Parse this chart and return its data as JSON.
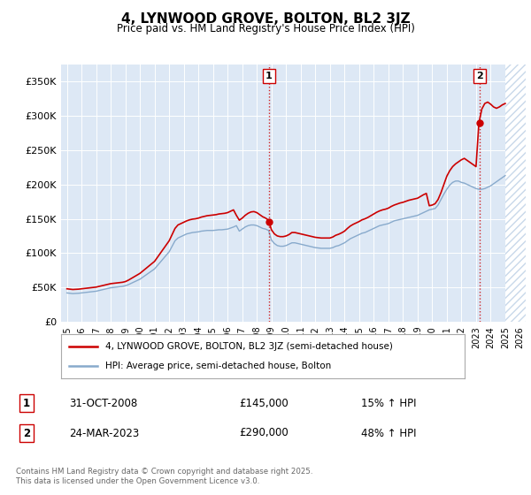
{
  "title": "4, LYNWOOD GROVE, BOLTON, BL2 3JZ",
  "subtitle": "Price paid vs. HM Land Registry's House Price Index (HPI)",
  "plot_bg_color": "#dde8f5",
  "hatch_color": "#c8d8ea",
  "ylim": [
    0,
    375000
  ],
  "yticks": [
    0,
    50000,
    100000,
    150000,
    200000,
    250000,
    300000,
    350000
  ],
  "ytick_labels": [
    "£0",
    "£50K",
    "£100K",
    "£150K",
    "£200K",
    "£250K",
    "£300K",
    "£350K"
  ],
  "xlim_start": 1994.6,
  "xlim_end": 2026.4,
  "xticks": [
    1995,
    1996,
    1997,
    1998,
    1999,
    2000,
    2001,
    2002,
    2003,
    2004,
    2005,
    2006,
    2007,
    2008,
    2009,
    2010,
    2011,
    2012,
    2013,
    2014,
    2015,
    2016,
    2017,
    2018,
    2019,
    2020,
    2021,
    2022,
    2023,
    2024,
    2025,
    2026
  ],
  "sale1_x": 2008.83,
  "sale1_y": 145000,
  "sale1_label": "1",
  "sale1_date": "31-OCT-2008",
  "sale1_price": "£145,000",
  "sale1_hpi": "15% ↑ HPI",
  "sale2_x": 2023.23,
  "sale2_y": 290000,
  "sale2_label": "2",
  "sale2_date": "24-MAR-2023",
  "sale2_price": "£290,000",
  "sale2_hpi": "48% ↑ HPI",
  "red_line_color": "#cc0000",
  "blue_line_color": "#88aacc",
  "legend_label_red": "4, LYNWOOD GROVE, BOLTON, BL2 3JZ (semi-detached house)",
  "legend_label_blue": "HPI: Average price, semi-detached house, Bolton",
  "footer_text": "Contains HM Land Registry data © Crown copyright and database right 2025.\nThis data is licensed under the Open Government Licence v3.0.",
  "hpi_blue_data": [
    [
      1995.0,
      42000
    ],
    [
      1995.2,
      41500
    ],
    [
      1995.4,
      41000
    ],
    [
      1995.6,
      41200
    ],
    [
      1995.8,
      41500
    ],
    [
      1996.0,
      42000
    ],
    [
      1996.2,
      42500
    ],
    [
      1996.4,
      43000
    ],
    [
      1996.6,
      43500
    ],
    [
      1996.8,
      44000
    ],
    [
      1997.0,
      44500
    ],
    [
      1997.2,
      45500
    ],
    [
      1997.4,
      46500
    ],
    [
      1997.6,
      47500
    ],
    [
      1997.8,
      48500
    ],
    [
      1998.0,
      49500
    ],
    [
      1998.2,
      50000
    ],
    [
      1998.4,
      50500
    ],
    [
      1998.6,
      51000
    ],
    [
      1998.8,
      51500
    ],
    [
      1999.0,
      52500
    ],
    [
      1999.2,
      54000
    ],
    [
      1999.4,
      56000
    ],
    [
      1999.6,
      58000
    ],
    [
      1999.8,
      60000
    ],
    [
      2000.0,
      62000
    ],
    [
      2000.2,
      65000
    ],
    [
      2000.4,
      68000
    ],
    [
      2000.6,
      71000
    ],
    [
      2000.8,
      74000
    ],
    [
      2001.0,
      77000
    ],
    [
      2001.2,
      82000
    ],
    [
      2001.4,
      87000
    ],
    [
      2001.6,
      92000
    ],
    [
      2001.8,
      97000
    ],
    [
      2002.0,
      102000
    ],
    [
      2002.2,
      110000
    ],
    [
      2002.4,
      118000
    ],
    [
      2002.6,
      122000
    ],
    [
      2002.8,
      124000
    ],
    [
      2003.0,
      126000
    ],
    [
      2003.2,
      128000
    ],
    [
      2003.4,
      129000
    ],
    [
      2003.6,
      130000
    ],
    [
      2003.8,
      130500
    ],
    [
      2004.0,
      131000
    ],
    [
      2004.2,
      132000
    ],
    [
      2004.4,
      132500
    ],
    [
      2004.6,
      133000
    ],
    [
      2004.8,
      133000
    ],
    [
      2005.0,
      133000
    ],
    [
      2005.2,
      133500
    ],
    [
      2005.4,
      134000
    ],
    [
      2005.6,
      134000
    ],
    [
      2005.8,
      134500
    ],
    [
      2006.0,
      135000
    ],
    [
      2006.2,
      136500
    ],
    [
      2006.4,
      138000
    ],
    [
      2006.6,
      140000
    ],
    [
      2006.8,
      132000
    ],
    [
      2007.0,
      135000
    ],
    [
      2007.2,
      138000
    ],
    [
      2007.4,
      140000
    ],
    [
      2007.6,
      141000
    ],
    [
      2007.8,
      141000
    ],
    [
      2008.0,
      140000
    ],
    [
      2008.2,
      138000
    ],
    [
      2008.4,
      136000
    ],
    [
      2008.6,
      135000
    ],
    [
      2008.8,
      133000
    ],
    [
      2009.0,
      119000
    ],
    [
      2009.2,
      114000
    ],
    [
      2009.4,
      111000
    ],
    [
      2009.6,
      110000
    ],
    [
      2009.8,
      110000
    ],
    [
      2010.0,
      111000
    ],
    [
      2010.2,
      113000
    ],
    [
      2010.4,
      115000
    ],
    [
      2010.6,
      115000
    ],
    [
      2010.8,
      114000
    ],
    [
      2011.0,
      113000
    ],
    [
      2011.2,
      112000
    ],
    [
      2011.4,
      111000
    ],
    [
      2011.6,
      110000
    ],
    [
      2011.8,
      109000
    ],
    [
      2012.0,
      108000
    ],
    [
      2012.2,
      107500
    ],
    [
      2012.4,
      107000
    ],
    [
      2012.6,
      107000
    ],
    [
      2012.8,
      107000
    ],
    [
      2013.0,
      107000
    ],
    [
      2013.2,
      108000
    ],
    [
      2013.4,
      110000
    ],
    [
      2013.6,
      111000
    ],
    [
      2013.8,
      113000
    ],
    [
      2014.0,
      115000
    ],
    [
      2014.2,
      118000
    ],
    [
      2014.4,
      121000
    ],
    [
      2014.6,
      123000
    ],
    [
      2014.8,
      125000
    ],
    [
      2015.0,
      127000
    ],
    [
      2015.2,
      129000
    ],
    [
      2015.4,
      130000
    ],
    [
      2015.6,
      132000
    ],
    [
      2015.8,
      134000
    ],
    [
      2016.0,
      136000
    ],
    [
      2016.2,
      138000
    ],
    [
      2016.4,
      140000
    ],
    [
      2016.6,
      141000
    ],
    [
      2016.8,
      142000
    ],
    [
      2017.0,
      143000
    ],
    [
      2017.2,
      145000
    ],
    [
      2017.4,
      147000
    ],
    [
      2017.6,
      148000
    ],
    [
      2017.8,
      149000
    ],
    [
      2018.0,
      150000
    ],
    [
      2018.2,
      151000
    ],
    [
      2018.4,
      152000
    ],
    [
      2018.6,
      153000
    ],
    [
      2018.8,
      154000
    ],
    [
      2019.0,
      155000
    ],
    [
      2019.2,
      157000
    ],
    [
      2019.4,
      159000
    ],
    [
      2019.6,
      161000
    ],
    [
      2019.8,
      163000
    ],
    [
      2020.0,
      164000
    ],
    [
      2020.2,
      165000
    ],
    [
      2020.4,
      170000
    ],
    [
      2020.6,
      178000
    ],
    [
      2020.8,
      186000
    ],
    [
      2021.0,
      193000
    ],
    [
      2021.2,
      199000
    ],
    [
      2021.4,
      203000
    ],
    [
      2021.6,
      205000
    ],
    [
      2021.8,
      205000
    ],
    [
      2022.0,
      203000
    ],
    [
      2022.2,
      202000
    ],
    [
      2022.4,
      200000
    ],
    [
      2022.6,
      198000
    ],
    [
      2022.8,
      196000
    ],
    [
      2023.0,
      194000
    ],
    [
      2023.2,
      193000
    ],
    [
      2023.4,
      193000
    ],
    [
      2023.6,
      194000
    ],
    [
      2023.8,
      196000
    ],
    [
      2024.0,
      198000
    ],
    [
      2024.2,
      201000
    ],
    [
      2024.4,
      204000
    ],
    [
      2024.6,
      207000
    ],
    [
      2024.8,
      210000
    ],
    [
      2025.0,
      213000
    ]
  ],
  "red_hpi_data": [
    [
      1995.0,
      48000
    ],
    [
      1995.2,
      47500
    ],
    [
      1995.4,
      47000
    ],
    [
      1995.6,
      47200
    ],
    [
      1995.8,
      47500
    ],
    [
      1996.0,
      48000
    ],
    [
      1996.2,
      48500
    ],
    [
      1996.4,
      49000
    ],
    [
      1996.6,
      49500
    ],
    [
      1996.8,
      50000
    ],
    [
      1997.0,
      50500
    ],
    [
      1997.2,
      51500
    ],
    [
      1997.4,
      52500
    ],
    [
      1997.6,
      53500
    ],
    [
      1997.8,
      54500
    ],
    [
      1998.0,
      55500
    ],
    [
      1998.2,
      56000
    ],
    [
      1998.4,
      56500
    ],
    [
      1998.6,
      57000
    ],
    [
      1998.8,
      57500
    ],
    [
      1999.0,
      58500
    ],
    [
      1999.2,
      60500
    ],
    [
      1999.4,
      63000
    ],
    [
      1999.6,
      65500
    ],
    [
      1999.8,
      68000
    ],
    [
      2000.0,
      70500
    ],
    [
      2000.2,
      74000
    ],
    [
      2000.4,
      77500
    ],
    [
      2000.6,
      81000
    ],
    [
      2000.8,
      84500
    ],
    [
      2001.0,
      88000
    ],
    [
      2001.2,
      94000
    ],
    [
      2001.4,
      100000
    ],
    [
      2001.6,
      106000
    ],
    [
      2001.8,
      112000
    ],
    [
      2002.0,
      118000
    ],
    [
      2002.2,
      127000
    ],
    [
      2002.4,
      136000
    ],
    [
      2002.6,
      141000
    ],
    [
      2002.8,
      143000
    ],
    [
      2003.0,
      145000
    ],
    [
      2003.2,
      147000
    ],
    [
      2003.4,
      148500
    ],
    [
      2003.6,
      149500
    ],
    [
      2003.8,
      150000
    ],
    [
      2004.0,
      151000
    ],
    [
      2004.2,
      152500
    ],
    [
      2004.4,
      153500
    ],
    [
      2004.6,
      154500
    ],
    [
      2004.8,
      155000
    ],
    [
      2005.0,
      155500
    ],
    [
      2005.2,
      156000
    ],
    [
      2005.4,
      157000
    ],
    [
      2005.6,
      157500
    ],
    [
      2005.8,
      158000
    ],
    [
      2006.0,
      159000
    ],
    [
      2006.2,
      161000
    ],
    [
      2006.4,
      163000
    ],
    [
      2006.6,
      155000
    ],
    [
      2006.8,
      148000
    ],
    [
      2007.0,
      151000
    ],
    [
      2007.2,
      155000
    ],
    [
      2007.4,
      158000
    ],
    [
      2007.6,
      160000
    ],
    [
      2007.8,
      160500
    ],
    [
      2008.0,
      159000
    ],
    [
      2008.2,
      156000
    ],
    [
      2008.4,
      153000
    ],
    [
      2008.6,
      151000
    ],
    [
      2008.8,
      148000
    ],
    [
      2009.0,
      134000
    ],
    [
      2009.2,
      128000
    ],
    [
      2009.4,
      125000
    ],
    [
      2009.6,
      124000
    ],
    [
      2009.8,
      124000
    ],
    [
      2010.0,
      125000
    ],
    [
      2010.2,
      127000
    ],
    [
      2010.4,
      130000
    ],
    [
      2010.6,
      130000
    ],
    [
      2010.8,
      129000
    ],
    [
      2011.0,
      128000
    ],
    [
      2011.2,
      127000
    ],
    [
      2011.4,
      126000
    ],
    [
      2011.6,
      125000
    ],
    [
      2011.8,
      124000
    ],
    [
      2012.0,
      123000
    ],
    [
      2012.2,
      122500
    ],
    [
      2012.4,
      122000
    ],
    [
      2012.6,
      122000
    ],
    [
      2012.8,
      122000
    ],
    [
      2013.0,
      122000
    ],
    [
      2013.2,
      123500
    ],
    [
      2013.4,
      126000
    ],
    [
      2013.6,
      127500
    ],
    [
      2013.8,
      129500
    ],
    [
      2014.0,
      132000
    ],
    [
      2014.2,
      136000
    ],
    [
      2014.4,
      139500
    ],
    [
      2014.6,
      142000
    ],
    [
      2014.8,
      144000
    ],
    [
      2015.0,
      146000
    ],
    [
      2015.2,
      148500
    ],
    [
      2015.4,
      150000
    ],
    [
      2015.6,
      152000
    ],
    [
      2015.8,
      154500
    ],
    [
      2016.0,
      157000
    ],
    [
      2016.2,
      159500
    ],
    [
      2016.4,
      161500
    ],
    [
      2016.6,
      163000
    ],
    [
      2016.8,
      164000
    ],
    [
      2017.0,
      165500
    ],
    [
      2017.2,
      168000
    ],
    [
      2017.4,
      170000
    ],
    [
      2017.6,
      171500
    ],
    [
      2017.8,
      173000
    ],
    [
      2018.0,
      174000
    ],
    [
      2018.2,
      175500
    ],
    [
      2018.4,
      177000
    ],
    [
      2018.6,
      178000
    ],
    [
      2018.8,
      179000
    ],
    [
      2019.0,
      180000
    ],
    [
      2019.2,
      182500
    ],
    [
      2019.4,
      185000
    ],
    [
      2019.6,
      187000
    ],
    [
      2019.8,
      169000
    ],
    [
      2020.0,
      170000
    ],
    [
      2020.2,
      172000
    ],
    [
      2020.4,
      178000
    ],
    [
      2020.6,
      188000
    ],
    [
      2020.8,
      200000
    ],
    [
      2021.0,
      212000
    ],
    [
      2021.2,
      220000
    ],
    [
      2021.4,
      226000
    ],
    [
      2021.6,
      230000
    ],
    [
      2021.8,
      233000
    ],
    [
      2022.0,
      236000
    ],
    [
      2022.2,
      238000
    ],
    [
      2022.4,
      235000
    ],
    [
      2022.6,
      232000
    ],
    [
      2022.8,
      229000
    ],
    [
      2023.0,
      226000
    ],
    [
      2023.2,
      290000
    ],
    [
      2023.4,
      310000
    ],
    [
      2023.6,
      318000
    ],
    [
      2023.8,
      320000
    ],
    [
      2024.0,
      317000
    ],
    [
      2024.2,
      313000
    ],
    [
      2024.4,
      311000
    ],
    [
      2024.6,
      313000
    ],
    [
      2024.8,
      316000
    ],
    [
      2025.0,
      318000
    ]
  ]
}
